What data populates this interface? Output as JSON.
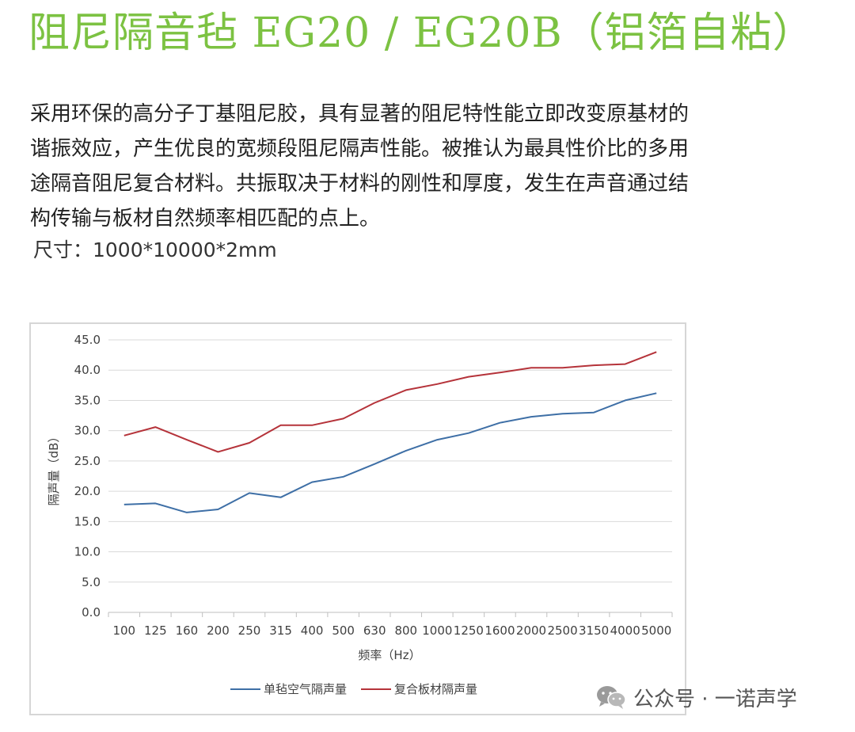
{
  "header": {
    "title": "阻尼隔音毡 EG20 / EG20B（铝箔自粘）"
  },
  "body": {
    "paragraphs": [
      "采用环保的高分子丁基阻尼胶，具有显著的阻尼特性能立即改变原基材的",
      "谐振效应，产生优良的宽频段阻尼隔声性能。被推认为最具性价比的多用",
      "途隔音阻尼复合材料。共振取决于材料的刚性和厚度，发生在声音通过结",
      "构传输与板材自然频率相匹配的点上。"
    ],
    "size_line": "尺寸：1000*10000*2mm"
  },
  "chart_data": {
    "type": "line",
    "xlabel": "频率（Hz）",
    "ylabel": "隔声量（dB）",
    "categories": [
      "100",
      "125",
      "160",
      "200",
      "250",
      "315",
      "400",
      "500",
      "630",
      "800",
      "1000",
      "1250",
      "1600",
      "2000",
      "2500",
      "3150",
      "4000",
      "5000"
    ],
    "ylim": [
      0,
      45
    ],
    "yticks": [
      "0.0",
      "5.0",
      "10.0",
      "15.0",
      "20.0",
      "25.0",
      "30.0",
      "35.0",
      "40.0",
      "45.0"
    ],
    "grid": "horizontal",
    "legend_position": "bottom",
    "series": [
      {
        "name": "单毡空气隔声量",
        "color": "#3e6fa6",
        "values": [
          17.8,
          18.0,
          16.5,
          17.0,
          19.7,
          19.0,
          21.5,
          22.4,
          24.5,
          26.7,
          28.5,
          29.6,
          31.3,
          32.3,
          32.8,
          33.0,
          35.0,
          36.2
        ]
      },
      {
        "name": "复合板材隔声量",
        "color": "#b5333a",
        "values": [
          29.2,
          30.6,
          28.5,
          26.5,
          28.0,
          30.9,
          30.9,
          32.0,
          34.6,
          36.7,
          37.7,
          38.9,
          39.6,
          40.4,
          40.4,
          40.8,
          41.0,
          43.0
        ]
      }
    ]
  },
  "watermark": {
    "text": "公众号 · 一诺声学",
    "icon": "wechat-icon"
  },
  "colors": {
    "title": "#7cc242",
    "text": "#222222",
    "grid": "#d9d9d9",
    "axis": "#bfbfbf",
    "frame": "#d6d6d6"
  }
}
